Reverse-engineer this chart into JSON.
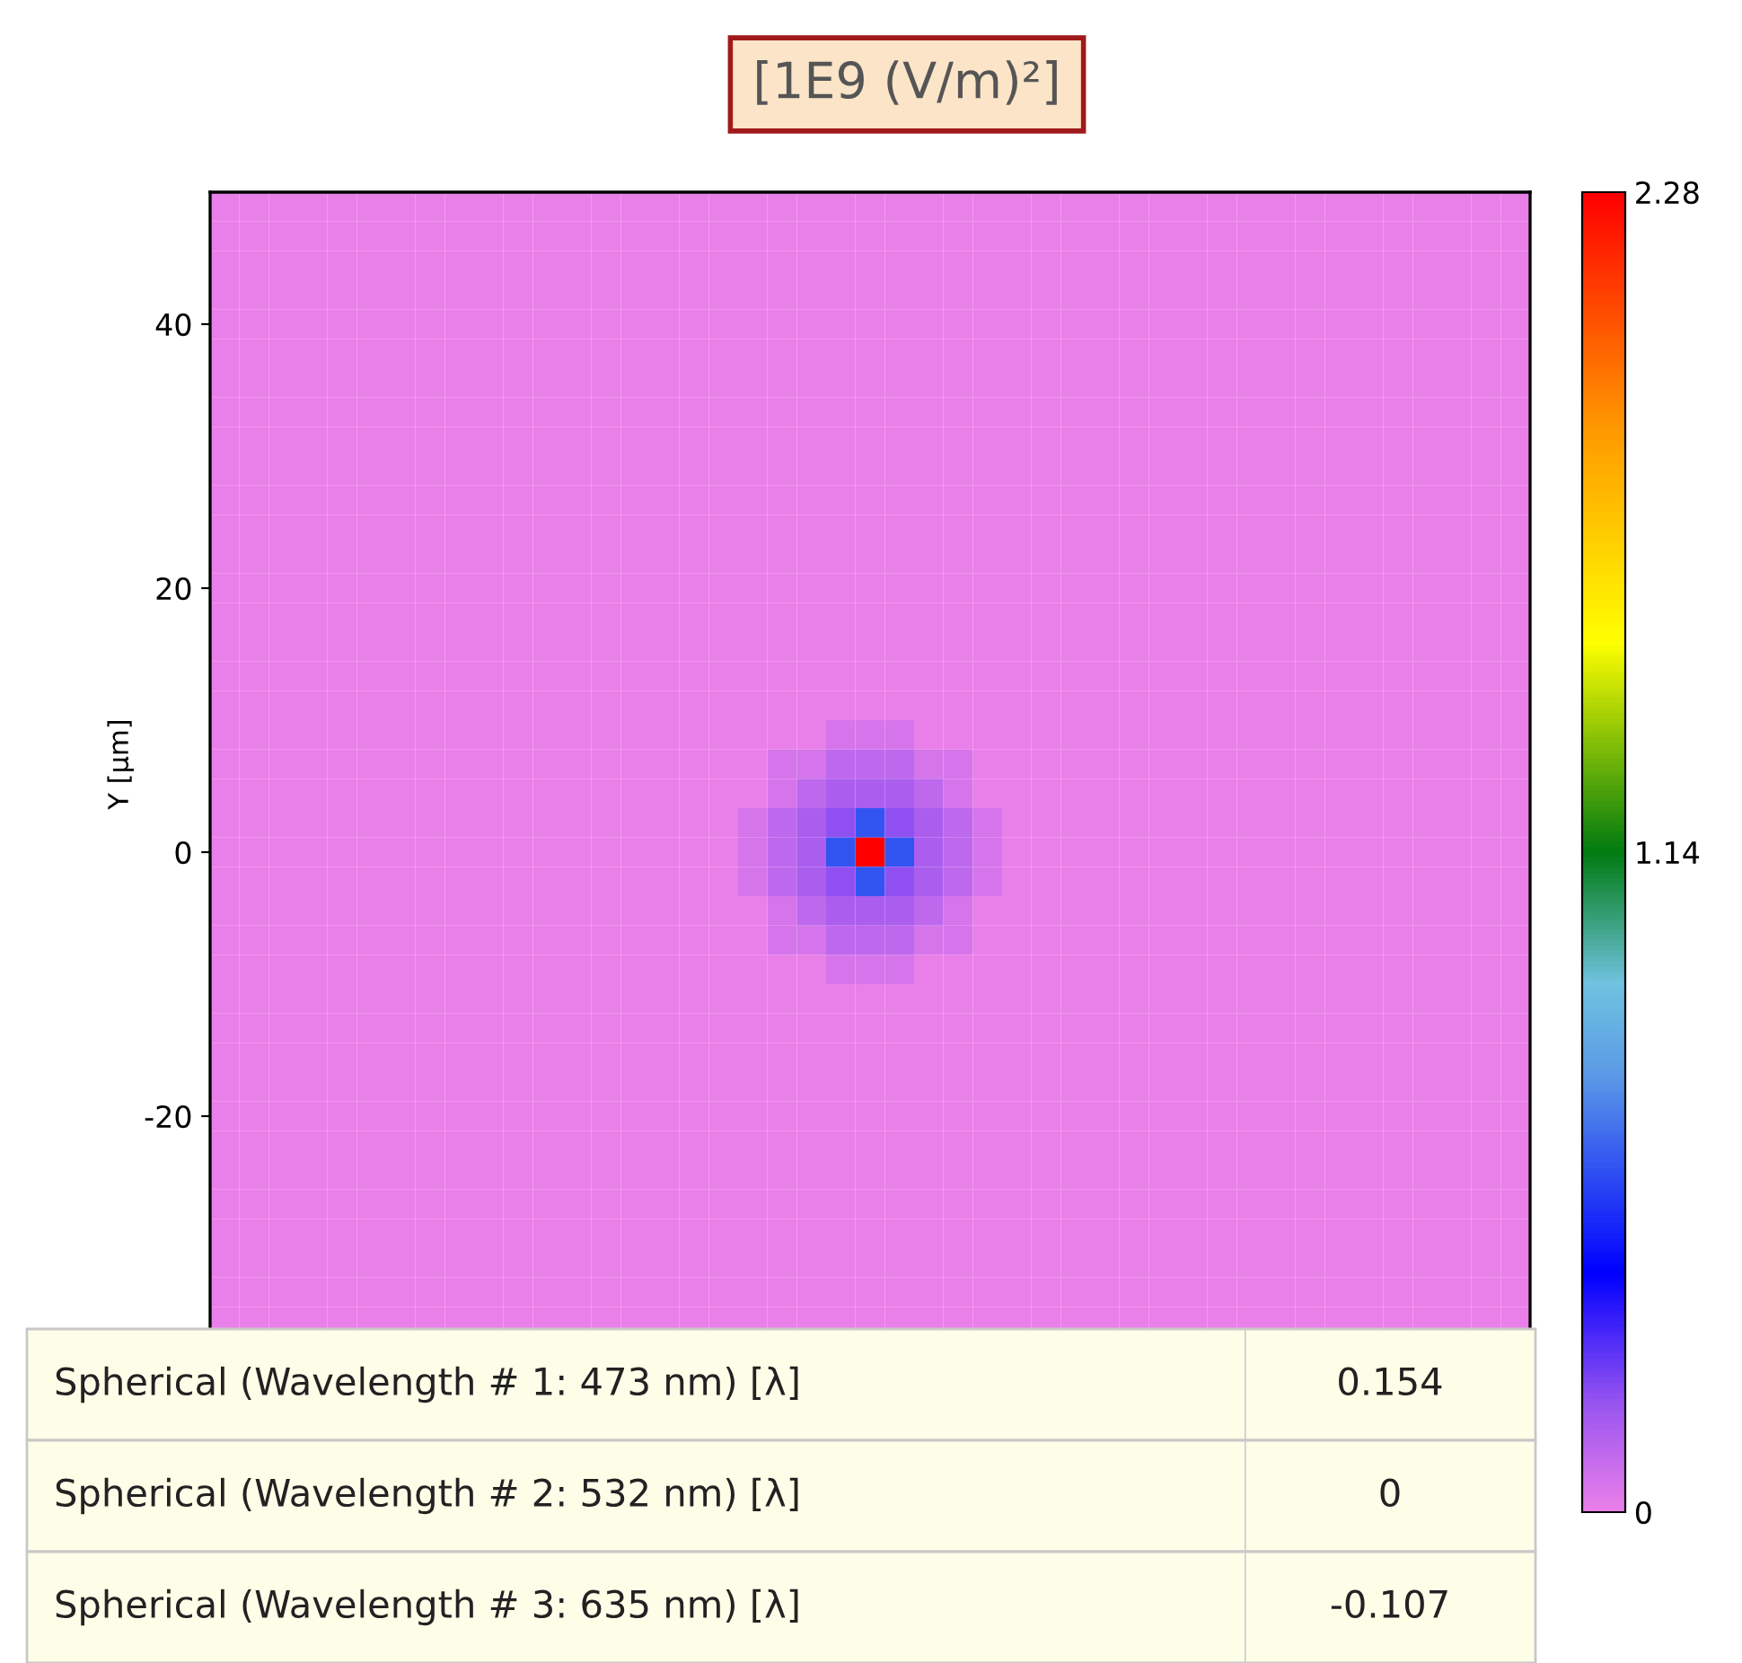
{
  "chart_data": {
    "type": "heatmap",
    "title": "[1E9 (V/m)²]",
    "ylabel": "Y [µm]",
    "categories": [
      null,
      null,
      null,
      null,
      null,
      null,
      null,
      null,
      null,
      null,
      null,
      null,
      null,
      null,
      null,
      null,
      null,
      null,
      null,
      null,
      null,
      null,
      null,
      null,
      null,
      null,
      null,
      null,
      null,
      null,
      null,
      null,
      null,
      null,
      null,
      null,
      null,
      null,
      null,
      null,
      null,
      null,
      null,
      null,
      null
    ],
    "y_categories": [
      null,
      null,
      null,
      null,
      "40",
      null,
      null,
      null,
      null,
      null,
      null,
      null,
      null,
      "20",
      null,
      null,
      null,
      null,
      null,
      null,
      null,
      null,
      "0",
      null,
      null,
      null,
      null,
      null,
      null,
      null,
      null,
      "-20",
      null,
      null,
      null,
      null,
      null,
      null,
      null
    ],
    "tick_labels": "y",
    "clim": [
      0,
      2.28
    ],
    "cticks": [
      0,
      1.14,
      2.28
    ],
    "cells": [
      [
        0,
        0,
        0,
        0,
        0,
        0,
        0,
        0,
        0,
        0,
        0,
        0,
        0,
        0,
        0,
        0,
        0,
        0,
        0,
        0,
        0,
        0,
        0,
        0,
        0,
        0,
        0,
        0,
        0,
        0,
        0,
        0,
        0,
        0,
        0,
        0,
        0,
        0,
        0,
        0,
        0,
        0,
        0,
        0,
        0
      ],
      [
        0,
        0,
        0,
        0,
        0,
        0,
        0,
        0,
        0,
        0,
        0,
        0,
        0,
        0,
        0,
        0,
        0,
        0,
        0,
        0,
        0,
        0,
        0,
        0,
        0,
        0,
        0,
        0,
        0,
        0,
        0,
        0,
        0,
        0,
        0,
        0,
        0,
        0,
        0,
        0,
        0,
        0,
        0,
        0,
        0
      ],
      [
        0,
        0,
        0,
        0,
        0,
        0,
        0,
        0,
        0,
        0,
        0,
        0,
        0,
        0,
        0,
        0,
        0,
        0,
        0,
        0,
        0,
        0,
        0,
        0,
        0,
        0,
        0,
        0,
        0,
        0,
        0,
        0,
        0,
        0,
        0,
        0,
        0,
        0,
        0,
        0,
        0,
        0,
        0,
        0,
        0
      ],
      [
        0,
        0,
        0,
        0,
        0,
        0,
        0,
        0,
        0,
        0,
        0,
        0,
        0,
        0,
        0,
        0,
        0,
        0,
        0,
        0,
        0,
        0,
        0,
        0,
        0,
        0,
        0,
        0,
        0,
        0,
        0,
        0,
        0,
        0,
        0,
        0,
        0,
        0,
        0,
        0,
        0,
        0,
        0,
        0,
        0
      ],
      [
        0,
        0,
        0,
        0,
        0,
        0,
        0,
        0,
        0,
        0,
        0,
        0,
        0,
        0,
        0,
        0,
        0,
        0,
        0,
        0,
        0,
        0,
        0,
        0,
        0,
        0,
        0,
        0,
        0,
        0,
        0,
        0,
        0,
        0,
        0,
        0,
        0,
        0,
        0,
        0,
        0,
        0,
        0,
        0,
        0
      ],
      [
        0,
        0,
        0,
        0,
        0,
        0,
        0,
        0,
        0,
        0,
        0,
        0,
        0,
        0,
        0,
        0,
        0,
        0,
        0,
        0,
        0,
        0,
        0,
        0,
        0,
        0,
        0,
        0,
        0,
        0,
        0,
        0,
        0,
        0,
        0,
        0,
        0,
        0,
        0,
        0,
        0,
        0,
        0,
        0,
        0
      ],
      [
        0,
        0,
        0,
        0,
        0,
        0,
        0,
        0,
        0,
        0,
        0,
        0,
        0,
        0,
        0,
        0,
        0,
        0,
        0,
        0,
        0,
        0,
        0,
        0,
        0,
        0,
        0,
        0,
        0,
        0,
        0,
        0,
        0,
        0,
        0,
        0,
        0,
        0,
        0,
        0,
        0,
        0,
        0,
        0,
        0
      ],
      [
        0,
        0,
        0,
        0,
        0,
        0,
        0,
        0,
        0,
        0,
        0,
        0,
        0,
        0,
        0,
        0,
        0,
        0,
        0,
        0,
        0,
        0,
        0,
        0,
        0,
        0,
        0,
        0,
        0,
        0,
        0,
        0,
        0,
        0,
        0,
        0,
        0,
        0,
        0,
        0,
        0,
        0,
        0,
        0,
        0
      ],
      [
        0,
        0,
        0,
        0,
        0,
        0,
        0,
        0,
        0,
        0,
        0,
        0,
        0,
        0,
        0,
        0,
        0,
        0,
        0,
        0,
        0,
        0,
        0,
        0,
        0,
        0,
        0,
        0,
        0,
        0,
        0,
        0,
        0,
        0,
        0,
        0,
        0,
        0,
        0,
        0,
        0,
        0,
        0,
        0,
        0
      ],
      [
        0,
        0,
        0,
        0,
        0,
        0,
        0,
        0,
        0,
        0,
        0,
        0,
        0,
        0,
        0,
        0,
        0,
        0,
        0,
        0,
        0,
        0,
        0,
        0,
        0,
        0,
        0,
        0,
        0,
        0,
        0,
        0,
        0,
        0,
        0,
        0,
        0,
        0,
        0,
        0,
        0,
        0,
        0,
        0,
        0
      ],
      [
        0,
        0,
        0,
        0,
        0,
        0,
        0,
        0,
        0,
        0,
        0,
        0,
        0,
        0,
        0,
        0,
        0,
        0,
        0,
        0,
        0,
        0,
        0,
        0,
        0,
        0,
        0,
        0,
        0,
        0,
        0,
        0,
        0,
        0,
        0,
        0,
        0,
        0,
        0,
        0,
        0,
        0,
        0,
        0,
        0
      ],
      [
        0,
        0,
        0,
        0,
        0,
        0,
        0,
        0,
        0,
        0,
        0,
        0,
        0,
        0,
        0,
        0,
        0,
        0,
        0,
        0,
        0,
        0,
        0,
        0,
        0,
        0,
        0,
        0,
        0,
        0,
        0,
        0,
        0,
        0,
        0,
        0,
        0,
        0,
        0,
        0,
        0,
        0,
        0,
        0,
        0
      ],
      [
        0,
        0,
        0,
        0,
        0,
        0,
        0,
        0,
        0,
        0,
        0,
        0,
        0,
        0,
        0,
        0,
        0,
        0,
        0,
        0,
        0,
        0,
        0,
        0,
        0,
        0,
        0,
        0,
        0,
        0,
        0,
        0,
        0,
        0,
        0,
        0,
        0,
        0,
        0,
        0,
        0,
        0,
        0,
        0,
        0
      ],
      [
        0,
        0,
        0,
        0,
        0,
        0,
        0,
        0,
        0,
        0,
        0,
        0,
        0,
        0,
        0,
        0,
        0,
        0,
        0,
        0,
        0,
        0,
        0,
        0,
        0,
        0,
        0,
        0,
        0,
        0,
        0,
        0,
        0,
        0,
        0,
        0,
        0,
        0,
        0,
        0,
        0,
        0,
        0,
        0,
        0
      ],
      [
        0,
        0,
        0,
        0,
        0,
        0,
        0,
        0,
        0,
        0,
        0,
        0,
        0,
        0,
        0,
        0,
        0,
        0,
        0,
        0,
        0,
        0,
        0,
        0,
        0,
        0,
        0,
        0,
        0,
        0,
        0,
        0,
        0,
        0,
        0,
        0,
        0,
        0,
        0,
        0,
        0,
        0,
        0,
        0,
        0
      ],
      [
        0,
        0,
        0,
        0,
        0,
        0,
        0,
        0,
        0,
        0,
        0,
        0,
        0,
        0,
        0,
        0,
        0,
        0,
        0,
        0,
        0,
        0,
        0,
        0,
        0,
        0,
        0,
        0,
        0,
        0,
        0,
        0,
        0,
        0,
        0,
        0,
        0,
        0,
        0,
        0,
        0,
        0,
        0,
        0,
        0
      ],
      [
        0,
        0,
        0,
        0,
        0,
        0,
        0,
        0,
        0,
        0,
        0,
        0,
        0,
        0,
        0,
        0,
        0,
        0,
        0,
        0,
        0,
        0,
        0,
        0,
        0,
        0,
        0,
        0,
        0,
        0,
        0,
        0,
        0,
        0,
        0,
        0,
        0,
        0,
        0,
        0,
        0,
        0,
        0,
        0,
        0
      ],
      [
        0,
        0,
        0,
        0,
        0,
        0,
        0,
        0,
        0,
        0,
        0,
        0,
        0,
        0,
        0,
        0,
        0,
        0,
        0,
        0,
        0,
        0,
        0,
        0,
        0,
        0,
        0,
        0,
        0,
        0,
        0,
        0,
        0,
        0,
        0,
        0,
        0,
        0,
        0,
        0,
        0,
        0,
        0,
        0,
        0
      ],
      [
        0,
        0,
        0,
        0,
        0,
        0,
        0,
        0,
        0,
        0,
        0,
        0,
        0,
        0,
        0,
        0,
        0,
        0,
        0,
        0,
        0,
        0.05,
        0.05,
        0.05,
        0,
        0,
        0,
        0,
        0,
        0,
        0,
        0,
        0,
        0,
        0,
        0,
        0,
        0,
        0,
        0,
        0,
        0,
        0,
        0,
        0
      ],
      [
        0,
        0,
        0,
        0,
        0,
        0,
        0,
        0,
        0,
        0,
        0,
        0,
        0,
        0,
        0,
        0,
        0,
        0,
        0,
        0.05,
        0.05,
        0.1,
        0.1,
        0.1,
        0.05,
        0.05,
        0,
        0,
        0,
        0,
        0,
        0,
        0,
        0,
        0,
        0,
        0,
        0,
        0,
        0,
        0,
        0,
        0,
        0,
        0
      ],
      [
        0,
        0,
        0,
        0,
        0,
        0,
        0,
        0,
        0,
        0,
        0,
        0,
        0,
        0,
        0,
        0,
        0,
        0,
        0,
        0.05,
        0.1,
        0.15,
        0.15,
        0.15,
        0.1,
        0.05,
        0,
        0,
        0,
        0,
        0,
        0,
        0,
        0,
        0,
        0,
        0,
        0,
        0,
        0,
        0,
        0,
        0,
        0,
        0
      ],
      [
        0,
        0,
        0,
        0,
        0,
        0,
        0,
        0,
        0,
        0,
        0,
        0,
        0,
        0,
        0,
        0,
        0,
        0,
        0.05,
        0.1,
        0.15,
        0.2,
        0.6,
        0.2,
        0.15,
        0.1,
        0.05,
        0,
        0,
        0,
        0,
        0,
        0,
        0,
        0,
        0,
        0,
        0,
        0,
        0,
        0,
        0,
        0,
        0,
        0
      ],
      [
        0,
        0,
        0,
        0,
        0,
        0,
        0,
        0,
        0,
        0,
        0,
        0,
        0,
        0,
        0,
        0,
        0,
        0,
        0.05,
        0.1,
        0.15,
        0.6,
        2.28,
        0.6,
        0.15,
        0.1,
        0.05,
        0,
        0,
        0,
        0,
        0,
        0,
        0,
        0,
        0,
        0,
        0,
        0,
        0,
        0,
        0,
        0,
        0,
        0
      ],
      [
        0,
        0,
        0,
        0,
        0,
        0,
        0,
        0,
        0,
        0,
        0,
        0,
        0,
        0,
        0,
        0,
        0,
        0,
        0.05,
        0.1,
        0.15,
        0.2,
        0.6,
        0.2,
        0.15,
        0.1,
        0.05,
        0,
        0,
        0,
        0,
        0,
        0,
        0,
        0,
        0,
        0,
        0,
        0,
        0,
        0,
        0,
        0,
        0,
        0
      ],
      [
        0,
        0,
        0,
        0,
        0,
        0,
        0,
        0,
        0,
        0,
        0,
        0,
        0,
        0,
        0,
        0,
        0,
        0,
        0,
        0.05,
        0.1,
        0.15,
        0.15,
        0.15,
        0.1,
        0.05,
        0,
        0,
        0,
        0,
        0,
        0,
        0,
        0,
        0,
        0,
        0,
        0,
        0,
        0,
        0,
        0,
        0,
        0,
        0
      ],
      [
        0,
        0,
        0,
        0,
        0,
        0,
        0,
        0,
        0,
        0,
        0,
        0,
        0,
        0,
        0,
        0,
        0,
        0,
        0,
        0.05,
        0.05,
        0.1,
        0.1,
        0.1,
        0.05,
        0.05,
        0,
        0,
        0,
        0,
        0,
        0,
        0,
        0,
        0,
        0,
        0,
        0,
        0,
        0,
        0,
        0,
        0,
        0,
        0
      ],
      [
        0,
        0,
        0,
        0,
        0,
        0,
        0,
        0,
        0,
        0,
        0,
        0,
        0,
        0,
        0,
        0,
        0,
        0,
        0,
        0,
        0,
        0.05,
        0.05,
        0.05,
        0,
        0,
        0,
        0,
        0,
        0,
        0,
        0,
        0,
        0,
        0,
        0,
        0,
        0,
        0,
        0,
        0,
        0,
        0,
        0,
        0
      ],
      [
        0,
        0,
        0,
        0,
        0,
        0,
        0,
        0,
        0,
        0,
        0,
        0,
        0,
        0,
        0,
        0,
        0,
        0,
        0,
        0,
        0,
        0,
        0,
        0,
        0,
        0,
        0,
        0,
        0,
        0,
        0,
        0,
        0,
        0,
        0,
        0,
        0,
        0,
        0,
        0,
        0,
        0,
        0,
        0,
        0
      ],
      [
        0,
        0,
        0,
        0,
        0,
        0,
        0,
        0,
        0,
        0,
        0,
        0,
        0,
        0,
        0,
        0,
        0,
        0,
        0,
        0,
        0,
        0,
        0,
        0,
        0,
        0,
        0,
        0,
        0,
        0,
        0,
        0,
        0,
        0,
        0,
        0,
        0,
        0,
        0,
        0,
        0,
        0,
        0,
        0,
        0
      ],
      [
        0,
        0,
        0,
        0,
        0,
        0,
        0,
        0,
        0,
        0,
        0,
        0,
        0,
        0,
        0,
        0,
        0,
        0,
        0,
        0,
        0,
        0,
        0,
        0,
        0,
        0,
        0,
        0,
        0,
        0,
        0,
        0,
        0,
        0,
        0,
        0,
        0,
        0,
        0,
        0,
        0,
        0,
        0,
        0,
        0
      ],
      [
        0,
        0,
        0,
        0,
        0,
        0,
        0,
        0,
        0,
        0,
        0,
        0,
        0,
        0,
        0,
        0,
        0,
        0,
        0,
        0,
        0,
        0,
        0,
        0,
        0,
        0,
        0,
        0,
        0,
        0,
        0,
        0,
        0,
        0,
        0,
        0,
        0,
        0,
        0,
        0,
        0,
        0,
        0,
        0,
        0
      ],
      [
        0,
        0,
        0,
        0,
        0,
        0,
        0,
        0,
        0,
        0,
        0,
        0,
        0,
        0,
        0,
        0,
        0,
        0,
        0,
        0,
        0,
        0,
        0,
        0,
        0,
        0,
        0,
        0,
        0,
        0,
        0,
        0,
        0,
        0,
        0,
        0,
        0,
        0,
        0,
        0,
        0,
        0,
        0,
        0,
        0
      ],
      [
        0,
        0,
        0,
        0,
        0,
        0,
        0,
        0,
        0,
        0,
        0,
        0,
        0,
        0,
        0,
        0,
        0,
        0,
        0,
        0,
        0,
        0,
        0,
        0,
        0,
        0,
        0,
        0,
        0,
        0,
        0,
        0,
        0,
        0,
        0,
        0,
        0,
        0,
        0,
        0,
        0,
        0,
        0,
        0,
        0
      ],
      [
        0,
        0,
        0,
        0,
        0,
        0,
        0,
        0,
        0,
        0,
        0,
        0,
        0,
        0,
        0,
        0,
        0,
        0,
        0,
        0,
        0,
        0,
        0,
        0,
        0,
        0,
        0,
        0,
        0,
        0,
        0,
        0,
        0,
        0,
        0,
        0,
        0,
        0,
        0,
        0,
        0,
        0,
        0,
        0,
        0
      ],
      [
        0,
        0,
        0,
        0,
        0,
        0,
        0,
        0,
        0,
        0,
        0,
        0,
        0,
        0,
        0,
        0,
        0,
        0,
        0,
        0,
        0,
        0,
        0,
        0,
        0,
        0,
        0,
        0,
        0,
        0,
        0,
        0,
        0,
        0,
        0,
        0,
        0,
        0,
        0,
        0,
        0,
        0,
        0,
        0,
        0
      ],
      [
        0,
        0,
        0,
        0,
        0,
        0,
        0,
        0,
        0,
        0,
        0,
        0,
        0,
        0,
        0,
        0,
        0,
        0,
        0,
        0,
        0,
        0,
        0,
        0,
        0,
        0,
        0,
        0,
        0,
        0,
        0,
        0,
        0,
        0,
        0,
        0,
        0,
        0,
        0,
        0,
        0,
        0,
        0,
        0,
        0
      ],
      [
        0,
        0,
        0,
        0,
        0,
        0,
        0,
        0,
        0,
        0,
        0,
        0,
        0,
        0,
        0,
        0,
        0,
        0,
        0,
        0,
        0,
        0,
        0,
        0,
        0,
        0,
        0,
        0,
        0,
        0,
        0,
        0,
        0,
        0,
        0,
        0,
        0,
        0,
        0,
        0,
        0,
        0,
        0,
        0,
        0
      ],
      [
        0,
        0,
        0,
        0,
        0,
        0,
        0,
        0,
        0,
        0,
        0,
        0,
        0,
        0,
        0,
        0,
        0,
        0,
        0,
        0,
        0,
        0,
        0,
        0,
        0,
        0,
        0,
        0,
        0,
        0,
        0,
        0,
        0,
        0,
        0,
        0,
        0,
        0,
        0,
        0,
        0,
        0,
        0,
        0,
        0
      ],
      [
        0,
        0,
        0,
        0,
        0,
        0,
        0,
        0,
        0,
        0,
        0,
        0,
        0,
        0,
        0,
        0,
        0,
        0,
        0,
        0,
        0,
        0,
        0,
        0,
        0,
        0,
        0,
        0,
        0,
        0,
        0,
        0,
        0,
        0,
        0,
        0,
        0,
        0,
        0,
        0,
        0,
        0,
        0,
        0,
        0
      ]
    ],
    "annotations": [
      "Spherical (Wavelength # 1: 473 nm) [λ]",
      "0.154",
      "Spherical (Wavelength # 2: 532 nm) [λ]",
      "0",
      "Spherical (Wavelength # 3: 635 nm) [λ]",
      "-0.107"
    ]
  }
}
